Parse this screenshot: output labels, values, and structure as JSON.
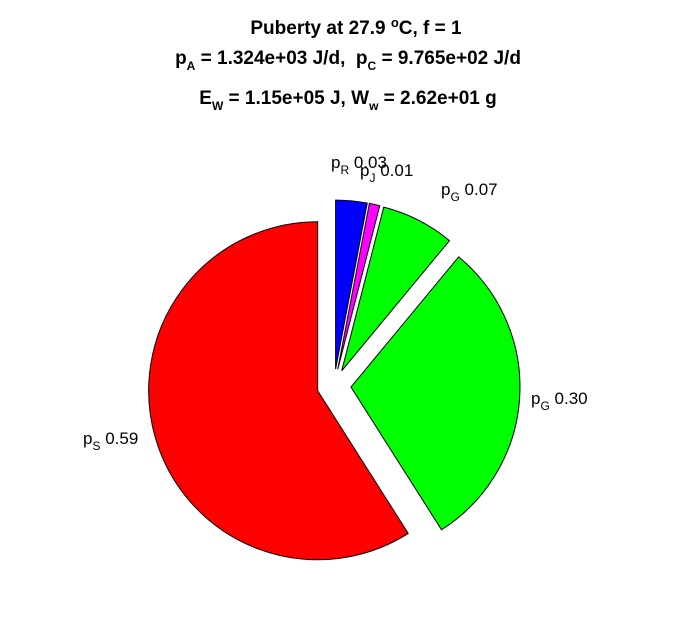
{
  "chart_data": {
    "type": "pie",
    "title": {
      "line1": "Puberty at 27.9 °C, f = 1",
      "line2": {
        "a_sym": "p",
        "a_sub": "A",
        "a_val": " = 1.324e+03 J/d,  ",
        "c_sym": "p",
        "c_sub": "C",
        "c_val": " = 9.765e+02 J/d"
      },
      "line3": {
        "e_sym": "E",
        "e_sub": "W",
        "e_val": " = 1.15e+05 J, ",
        "w_sym": "W",
        "w_sub": "w",
        "w_val": " = 2.62e+01 g"
      }
    },
    "slices": [
      {
        "sym": "p",
        "sub": "R",
        "value_label": "0.03",
        "value": 0.03,
        "color": "#0000ff"
      },
      {
        "sym": "p",
        "sub": "J",
        "value_label": "0.01",
        "value": 0.01,
        "color": "#ff00ff"
      },
      {
        "sym": "p",
        "sub": "G",
        "value_label": "0.07",
        "value": 0.07,
        "color": "#00ff00"
      },
      {
        "sym": "p",
        "sub": "G",
        "value_label": "0.30",
        "value": 0.3,
        "color": "#00ff00"
      },
      {
        "sym": "p",
        "sub": "S",
        "value_label": "0.59",
        "value": 0.59,
        "color": "#ff0000"
      }
    ],
    "exploded": true,
    "direction": "clockwise",
    "start_angle": "top"
  }
}
